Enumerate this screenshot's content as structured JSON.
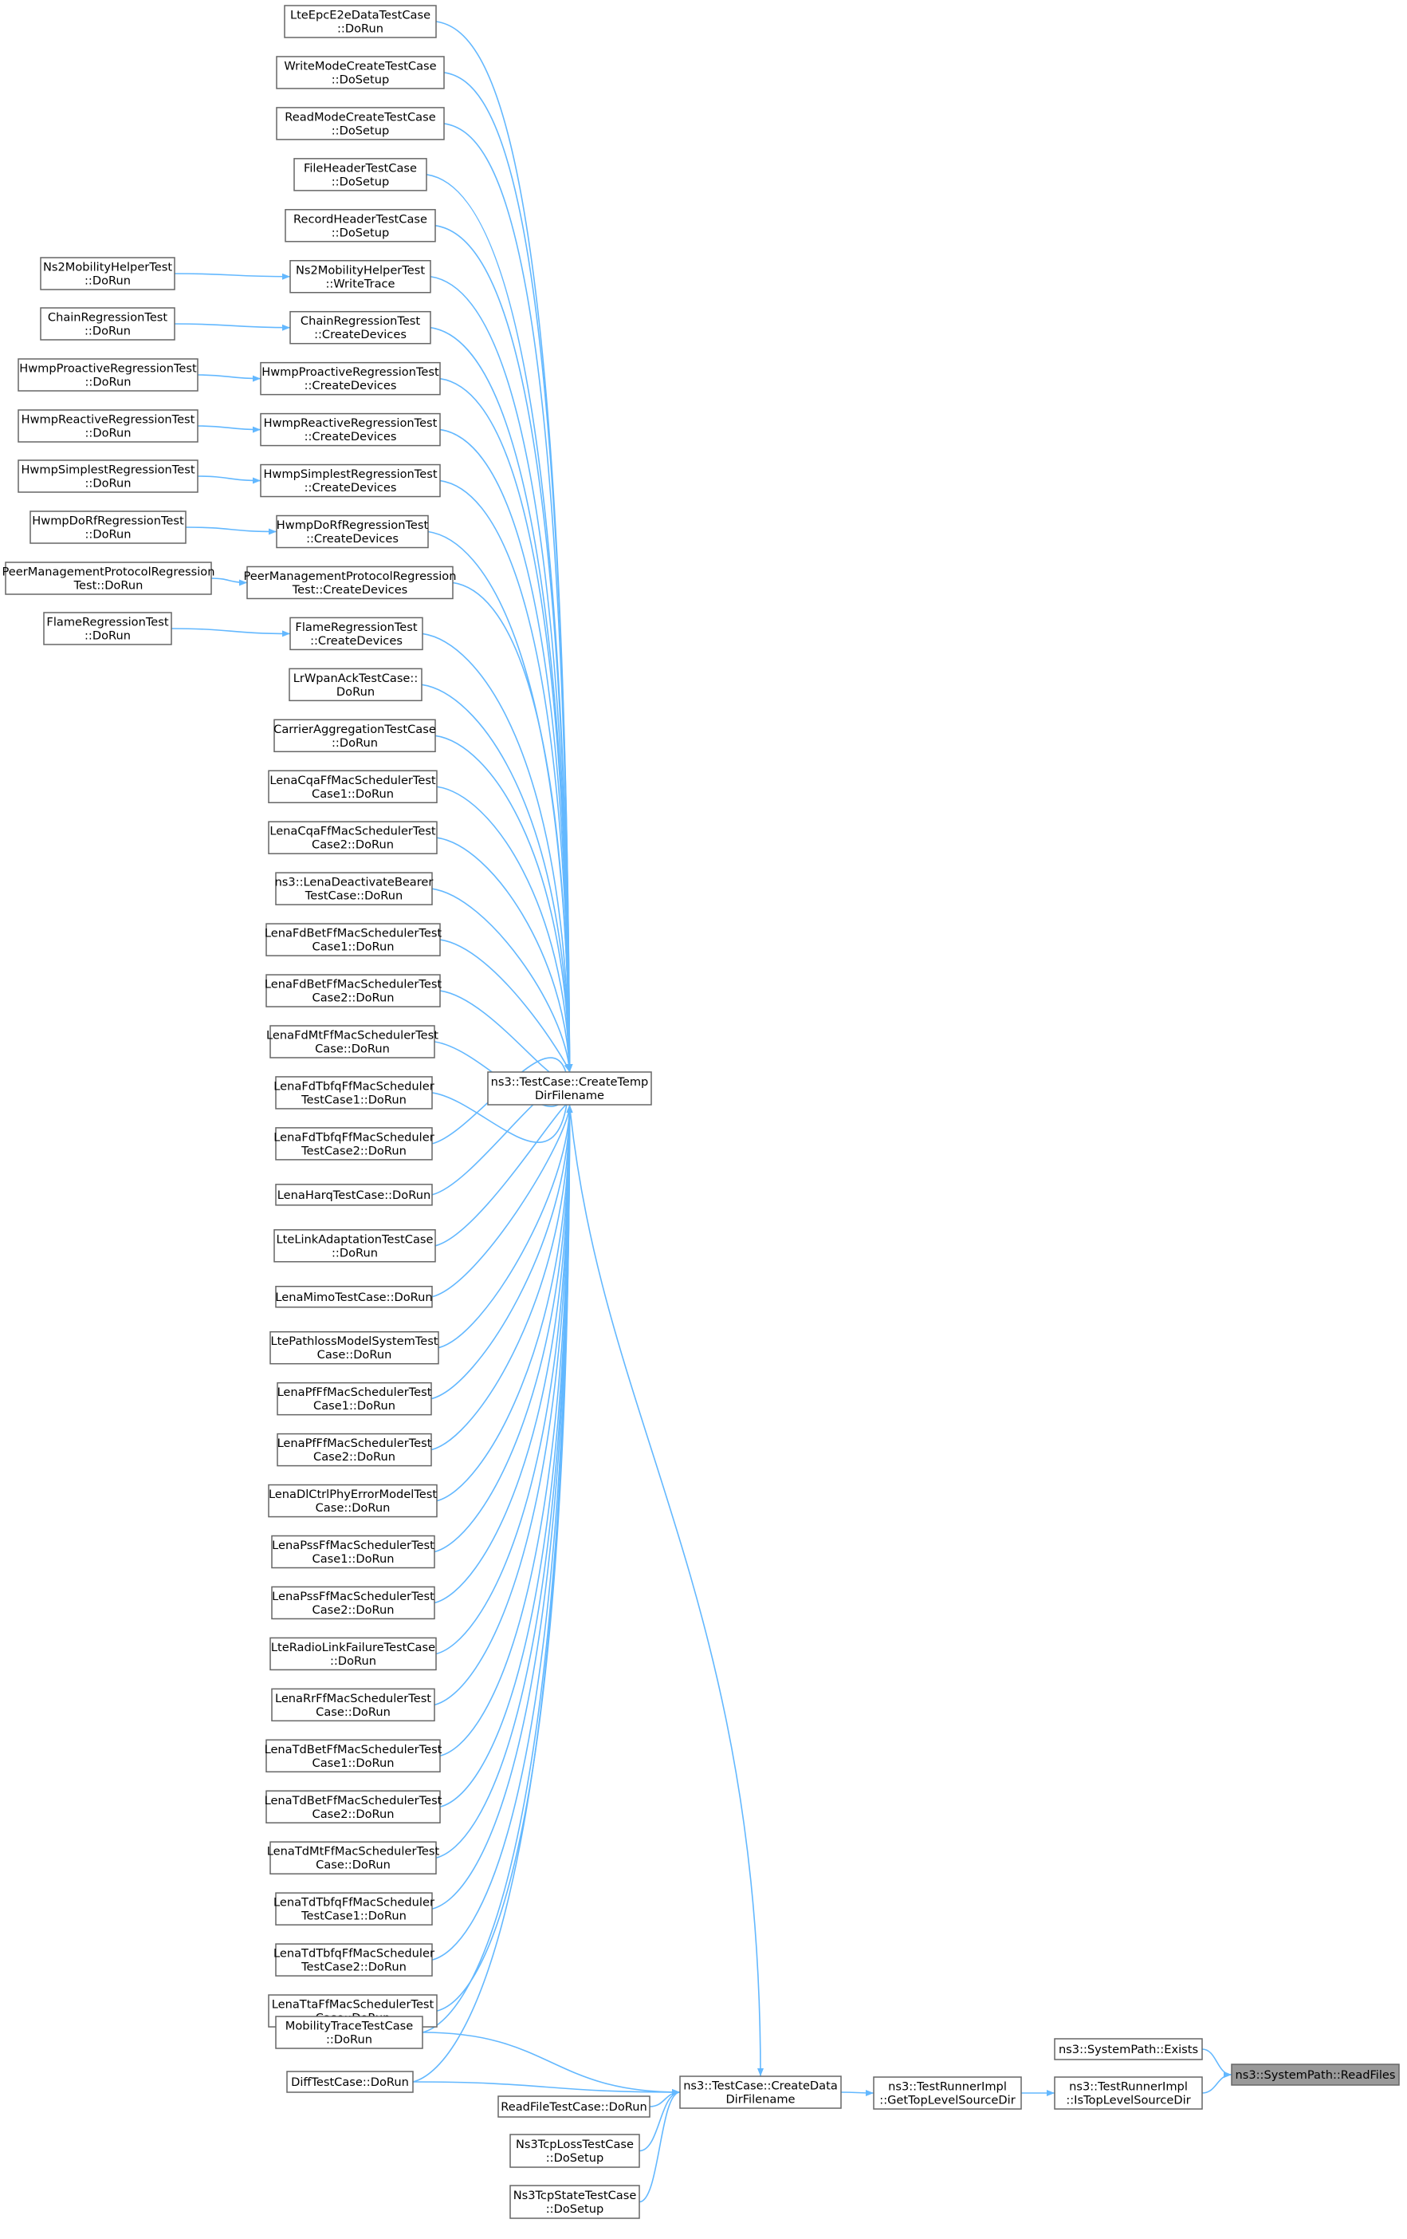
{
  "root": {
    "id": "readfiles",
    "lines": [
      "ns3::SystemPath::ReadFiles"
    ]
  },
  "nodes": [
    {
      "id": "exists",
      "lines": [
        "ns3::SystemPath::Exists"
      ]
    },
    {
      "id": "istoplevel",
      "lines": [
        "ns3::TestRunnerImpl",
        "::IsTopLevelSourceDir"
      ]
    },
    {
      "id": "gettoplevel",
      "lines": [
        "ns3::TestRunnerImpl",
        "::GetTopLevelSourceDir"
      ]
    },
    {
      "id": "createdata",
      "lines": [
        "ns3::TestCase::CreateData",
        "DirFilename"
      ]
    },
    {
      "id": "createtemp",
      "lines": [
        "ns3::TestCase::CreateTemp",
        "DirFilename"
      ]
    },
    {
      "id": "n_lteepc",
      "lines": [
        "LteEpcE2eDataTestCase",
        "::DoRun"
      ]
    },
    {
      "id": "n_writemode",
      "lines": [
        "WriteModeCreateTestCase",
        "::DoSetup"
      ]
    },
    {
      "id": "n_readmode",
      "lines": [
        "ReadModeCreateTestCase",
        "::DoSetup"
      ]
    },
    {
      "id": "n_fileheader",
      "lines": [
        "FileHeaderTestCase",
        "::DoSetup"
      ]
    },
    {
      "id": "n_recordheader",
      "lines": [
        "RecordHeaderTestCase",
        "::DoSetup"
      ]
    },
    {
      "id": "n_ns2write",
      "lines": [
        "Ns2MobilityHelperTest",
        "::WriteTrace"
      ]
    },
    {
      "id": "n_ns2run",
      "lines": [
        "Ns2MobilityHelperTest",
        "::DoRun"
      ]
    },
    {
      "id": "n_chaincd",
      "lines": [
        "ChainRegressionTest",
        "::CreateDevices"
      ]
    },
    {
      "id": "n_chainrun",
      "lines": [
        "ChainRegressionTest",
        "::DoRun"
      ]
    },
    {
      "id": "n_hpcd",
      "lines": [
        "HwmpProactiveRegressionTest",
        "::CreateDevices"
      ]
    },
    {
      "id": "n_hprun",
      "lines": [
        "HwmpProactiveRegressionTest",
        "::DoRun"
      ]
    },
    {
      "id": "n_hrcd",
      "lines": [
        "HwmpReactiveRegressionTest",
        "::CreateDevices"
      ]
    },
    {
      "id": "n_hrrun",
      "lines": [
        "HwmpReactiveRegressionTest",
        "::DoRun"
      ]
    },
    {
      "id": "n_hscd",
      "lines": [
        "HwmpSimplestRegressionTest",
        "::CreateDevices"
      ]
    },
    {
      "id": "n_hsrun",
      "lines": [
        "HwmpSimplestRegressionTest",
        "::DoRun"
      ]
    },
    {
      "id": "n_hdcd",
      "lines": [
        "HwmpDoRfRegressionTest",
        "::CreateDevices"
      ]
    },
    {
      "id": "n_hdrun",
      "lines": [
        "HwmpDoRfRegressionTest",
        "::DoRun"
      ]
    },
    {
      "id": "n_pmcd",
      "lines": [
        "PeerManagementProtocolRegression",
        "Test::CreateDevices"
      ]
    },
    {
      "id": "n_pmrun",
      "lines": [
        "PeerManagementProtocolRegression",
        "Test::DoRun"
      ]
    },
    {
      "id": "n_flamecd",
      "lines": [
        "FlameRegressionTest",
        "::CreateDevices"
      ]
    },
    {
      "id": "n_flamerun",
      "lines": [
        "FlameRegressionTest",
        "::DoRun"
      ]
    },
    {
      "id": "n_lrwpan",
      "lines": [
        "LrWpanAckTestCase::",
        "DoRun"
      ]
    },
    {
      "id": "n_carrier",
      "lines": [
        "CarrierAggregationTestCase",
        "::DoRun"
      ]
    },
    {
      "id": "n_cqa1",
      "lines": [
        "LenaCqaFfMacSchedulerTest",
        "Case1::DoRun"
      ]
    },
    {
      "id": "n_cqa2",
      "lines": [
        "LenaCqaFfMacSchedulerTest",
        "Case2::DoRun"
      ]
    },
    {
      "id": "n_deact",
      "lines": [
        "ns3::LenaDeactivateBearer",
        "TestCase::DoRun"
      ]
    },
    {
      "id": "n_fdbet1",
      "lines": [
        "LenaFdBetFfMacSchedulerTest",
        "Case1::DoRun"
      ]
    },
    {
      "id": "n_fdbet2",
      "lines": [
        "LenaFdBetFfMacSchedulerTest",
        "Case2::DoRun"
      ]
    },
    {
      "id": "n_fdmt",
      "lines": [
        "LenaFdMtFfMacSchedulerTest",
        "Case::DoRun"
      ]
    },
    {
      "id": "n_fdtbfq1",
      "lines": [
        "LenaFdTbfqFfMacScheduler",
        "TestCase1::DoRun"
      ]
    },
    {
      "id": "n_fdtbfq2",
      "lines": [
        "LenaFdTbfqFfMacScheduler",
        "TestCase2::DoRun"
      ]
    },
    {
      "id": "n_harq",
      "lines": [
        "LenaHarqTestCase::DoRun"
      ]
    },
    {
      "id": "n_linkadapt",
      "lines": [
        "LteLinkAdaptationTestCase",
        "::DoRun"
      ]
    },
    {
      "id": "n_mimo",
      "lines": [
        "LenaMimoTestCase::DoRun"
      ]
    },
    {
      "id": "n_pathloss",
      "lines": [
        "LtePathlossModelSystemTest",
        "Case::DoRun"
      ]
    },
    {
      "id": "n_pf1",
      "lines": [
        "LenaPfFfMacSchedulerTest",
        "Case1::DoRun"
      ]
    },
    {
      "id": "n_pf2",
      "lines": [
        "LenaPfFfMacSchedulerTest",
        "Case2::DoRun"
      ]
    },
    {
      "id": "n_dlctrl",
      "lines": [
        "LenaDlCtrlPhyErrorModelTest",
        "Case::DoRun"
      ]
    },
    {
      "id": "n_pss1",
      "lines": [
        "LenaPssFfMacSchedulerTest",
        "Case1::DoRun"
      ]
    },
    {
      "id": "n_pss2",
      "lines": [
        "LenaPssFfMacSchedulerTest",
        "Case2::DoRun"
      ]
    },
    {
      "id": "n_rlf",
      "lines": [
        "LteRadioLinkFailureTestCase",
        "::DoRun"
      ]
    },
    {
      "id": "n_rr",
      "lines": [
        "LenaRrFfMacSchedulerTest",
        "Case::DoRun"
      ]
    },
    {
      "id": "n_tdbet1",
      "lines": [
        "LenaTdBetFfMacSchedulerTest",
        "Case1::DoRun"
      ]
    },
    {
      "id": "n_tdbet2",
      "lines": [
        "LenaTdBetFfMacSchedulerTest",
        "Case2::DoRun"
      ]
    },
    {
      "id": "n_tdmt",
      "lines": [
        "LenaTdMtFfMacSchedulerTest",
        "Case::DoRun"
      ]
    },
    {
      "id": "n_tdtbfq1",
      "lines": [
        "LenaTdTbfqFfMacScheduler",
        "TestCase1::DoRun"
      ]
    },
    {
      "id": "n_tdtbfq2",
      "lines": [
        "LenaTdTbfqFfMacScheduler",
        "TestCase2::DoRun"
      ]
    },
    {
      "id": "n_tta",
      "lines": [
        "LenaTtaFfMacSchedulerTest",
        "Case::DoRun"
      ]
    },
    {
      "id": "n_mobtrace",
      "lines": [
        "MobilityTraceTestCase",
        "::DoRun"
      ]
    },
    {
      "id": "n_diff",
      "lines": [
        "DiffTestCase::DoRun"
      ]
    },
    {
      "id": "n_readfile",
      "lines": [
        "ReadFileTestCase::DoRun"
      ]
    },
    {
      "id": "n_tcploss",
      "lines": [
        "Ns3TcpLossTestCase",
        "::DoSetup"
      ]
    },
    {
      "id": "n_tcpstate",
      "lines": [
        "Ns3TcpStateTestCase",
        "::DoSetup"
      ]
    }
  ],
  "edges": [
    [
      "exists",
      "readfiles"
    ],
    [
      "istoplevel",
      "readfiles"
    ],
    [
      "gettoplevel",
      "istoplevel"
    ],
    [
      "createdata",
      "gettoplevel"
    ],
    [
      "createtemp",
      "createdata"
    ],
    [
      "n_mobtrace",
      "createdata"
    ],
    [
      "n_diff",
      "createdata"
    ],
    [
      "n_readfile",
      "createdata"
    ],
    [
      "n_tcploss",
      "createdata"
    ],
    [
      "n_tcpstate",
      "createdata"
    ],
    [
      "n_lteepc",
      "createtemp"
    ],
    [
      "n_writemode",
      "createtemp"
    ],
    [
      "n_readmode",
      "createtemp"
    ],
    [
      "n_fileheader",
      "createtemp"
    ],
    [
      "n_recordheader",
      "createtemp"
    ],
    [
      "n_ns2write",
      "createtemp"
    ],
    [
      "n_chaincd",
      "createtemp"
    ],
    [
      "n_hpcd",
      "createtemp"
    ],
    [
      "n_hrcd",
      "createtemp"
    ],
    [
      "n_hscd",
      "createtemp"
    ],
    [
      "n_hdcd",
      "createtemp"
    ],
    [
      "n_pmcd",
      "createtemp"
    ],
    [
      "n_flamecd",
      "createtemp"
    ],
    [
      "n_lrwpan",
      "createtemp"
    ],
    [
      "n_carrier",
      "createtemp"
    ],
    [
      "n_cqa1",
      "createtemp"
    ],
    [
      "n_cqa2",
      "createtemp"
    ],
    [
      "n_deact",
      "createtemp"
    ],
    [
      "n_fdbet1",
      "createtemp"
    ],
    [
      "n_fdbet2",
      "createtemp"
    ],
    [
      "n_fdmt",
      "createtemp"
    ],
    [
      "n_fdtbfq1",
      "createtemp"
    ],
    [
      "n_fdtbfq2",
      "createtemp"
    ],
    [
      "n_harq",
      "createtemp"
    ],
    [
      "n_linkadapt",
      "createtemp"
    ],
    [
      "n_mimo",
      "createtemp"
    ],
    [
      "n_pathloss",
      "createtemp"
    ],
    [
      "n_pf1",
      "createtemp"
    ],
    [
      "n_pf2",
      "createtemp"
    ],
    [
      "n_dlctrl",
      "createtemp"
    ],
    [
      "n_pss1",
      "createtemp"
    ],
    [
      "n_pss2",
      "createtemp"
    ],
    [
      "n_rlf",
      "createtemp"
    ],
    [
      "n_rr",
      "createtemp"
    ],
    [
      "n_tdbet1",
      "createtemp"
    ],
    [
      "n_tdbet2",
      "createtemp"
    ],
    [
      "n_tdmt",
      "createtemp"
    ],
    [
      "n_tdtbfq1",
      "createtemp"
    ],
    [
      "n_tdtbfq2",
      "createtemp"
    ],
    [
      "n_tta",
      "createtemp"
    ],
    [
      "n_mobtrace",
      "createtemp"
    ],
    [
      "n_diff",
      "createtemp"
    ],
    [
      "n_ns2run",
      "n_ns2write"
    ],
    [
      "n_chainrun",
      "n_chaincd"
    ],
    [
      "n_hprun",
      "n_hpcd"
    ],
    [
      "n_hrrun",
      "n_hrcd"
    ],
    [
      "n_hsrun",
      "n_hscd"
    ],
    [
      "n_hdrun",
      "n_hdcd"
    ],
    [
      "n_pmrun",
      "n_pmcd"
    ],
    [
      "n_flamerun",
      "n_flamecd"
    ]
  ],
  "colors": {
    "edge": "#63b8ff",
    "node_border": "#666666",
    "node_fill": "#ffffff",
    "root_fill": "#999999",
    "text": "#000000"
  }
}
